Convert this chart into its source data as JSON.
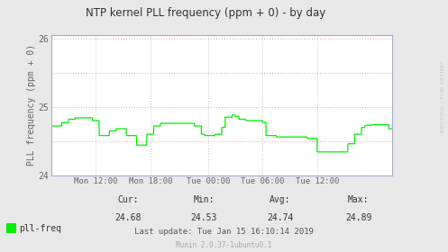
{
  "title": "NTP kernel PLL frequency (ppm + 0) - by day",
  "ylabel": "PLL frequency (ppm + 0)",
  "bg_color": "#e8e8e8",
  "plot_bg_color": "#ffffff",
  "line_color": "#00ee00",
  "grid_color_h": "#ffaaaa",
  "grid_color_v": "#ccccdd",
  "border_color": "#aaaacc",
  "ylim_min": 24.0,
  "ylim_max": 26.05,
  "xtick_labels": [
    "Mon 12:00",
    "Mon 18:00",
    "Tue 00:00",
    "Tue 06:00",
    "Tue 12:00"
  ],
  "legend_label": "pll-freq",
  "cur": "24.68",
  "min_val": "24.53",
  "avg": "24.74",
  "max_val": "24.89",
  "last_update": "Last update: Tue Jan 15 16:10:14 2019",
  "munin_version": "Munin 2.0.37-1ubuntu0.1",
  "rrdtool_label": "RRDTOOL / TOBI OETIKER",
  "signal_x": [
    0,
    2,
    3,
    5,
    7,
    9,
    11,
    12,
    14,
    16,
    17,
    19,
    20,
    22,
    23,
    25,
    26,
    28,
    30,
    32,
    34,
    36,
    38,
    40,
    42,
    44,
    45,
    47,
    48,
    50,
    51,
    53,
    54,
    55,
    57,
    59,
    61,
    62,
    63,
    65,
    66,
    68,
    70,
    72,
    74,
    75,
    77,
    78,
    80,
    81,
    82,
    84,
    86,
    87,
    89,
    91,
    92,
    94,
    96,
    97,
    99,
    100
  ],
  "signal_y": [
    24.72,
    24.72,
    24.77,
    24.82,
    24.84,
    24.84,
    24.84,
    24.8,
    24.58,
    24.58,
    24.65,
    24.68,
    24.68,
    24.58,
    24.58,
    24.44,
    24.44,
    24.6,
    24.72,
    24.76,
    24.76,
    24.76,
    24.76,
    24.76,
    24.72,
    24.6,
    24.58,
    24.58,
    24.6,
    24.7,
    24.85,
    24.88,
    24.86,
    24.82,
    24.8,
    24.8,
    24.8,
    24.77,
    24.58,
    24.58,
    24.56,
    24.56,
    24.56,
    24.56,
    24.56,
    24.54,
    24.54,
    24.34,
    24.34,
    24.34,
    24.34,
    24.34,
    24.34,
    24.46,
    24.6,
    24.7,
    24.73,
    24.74,
    24.74,
    24.74,
    24.68,
    24.68
  ]
}
